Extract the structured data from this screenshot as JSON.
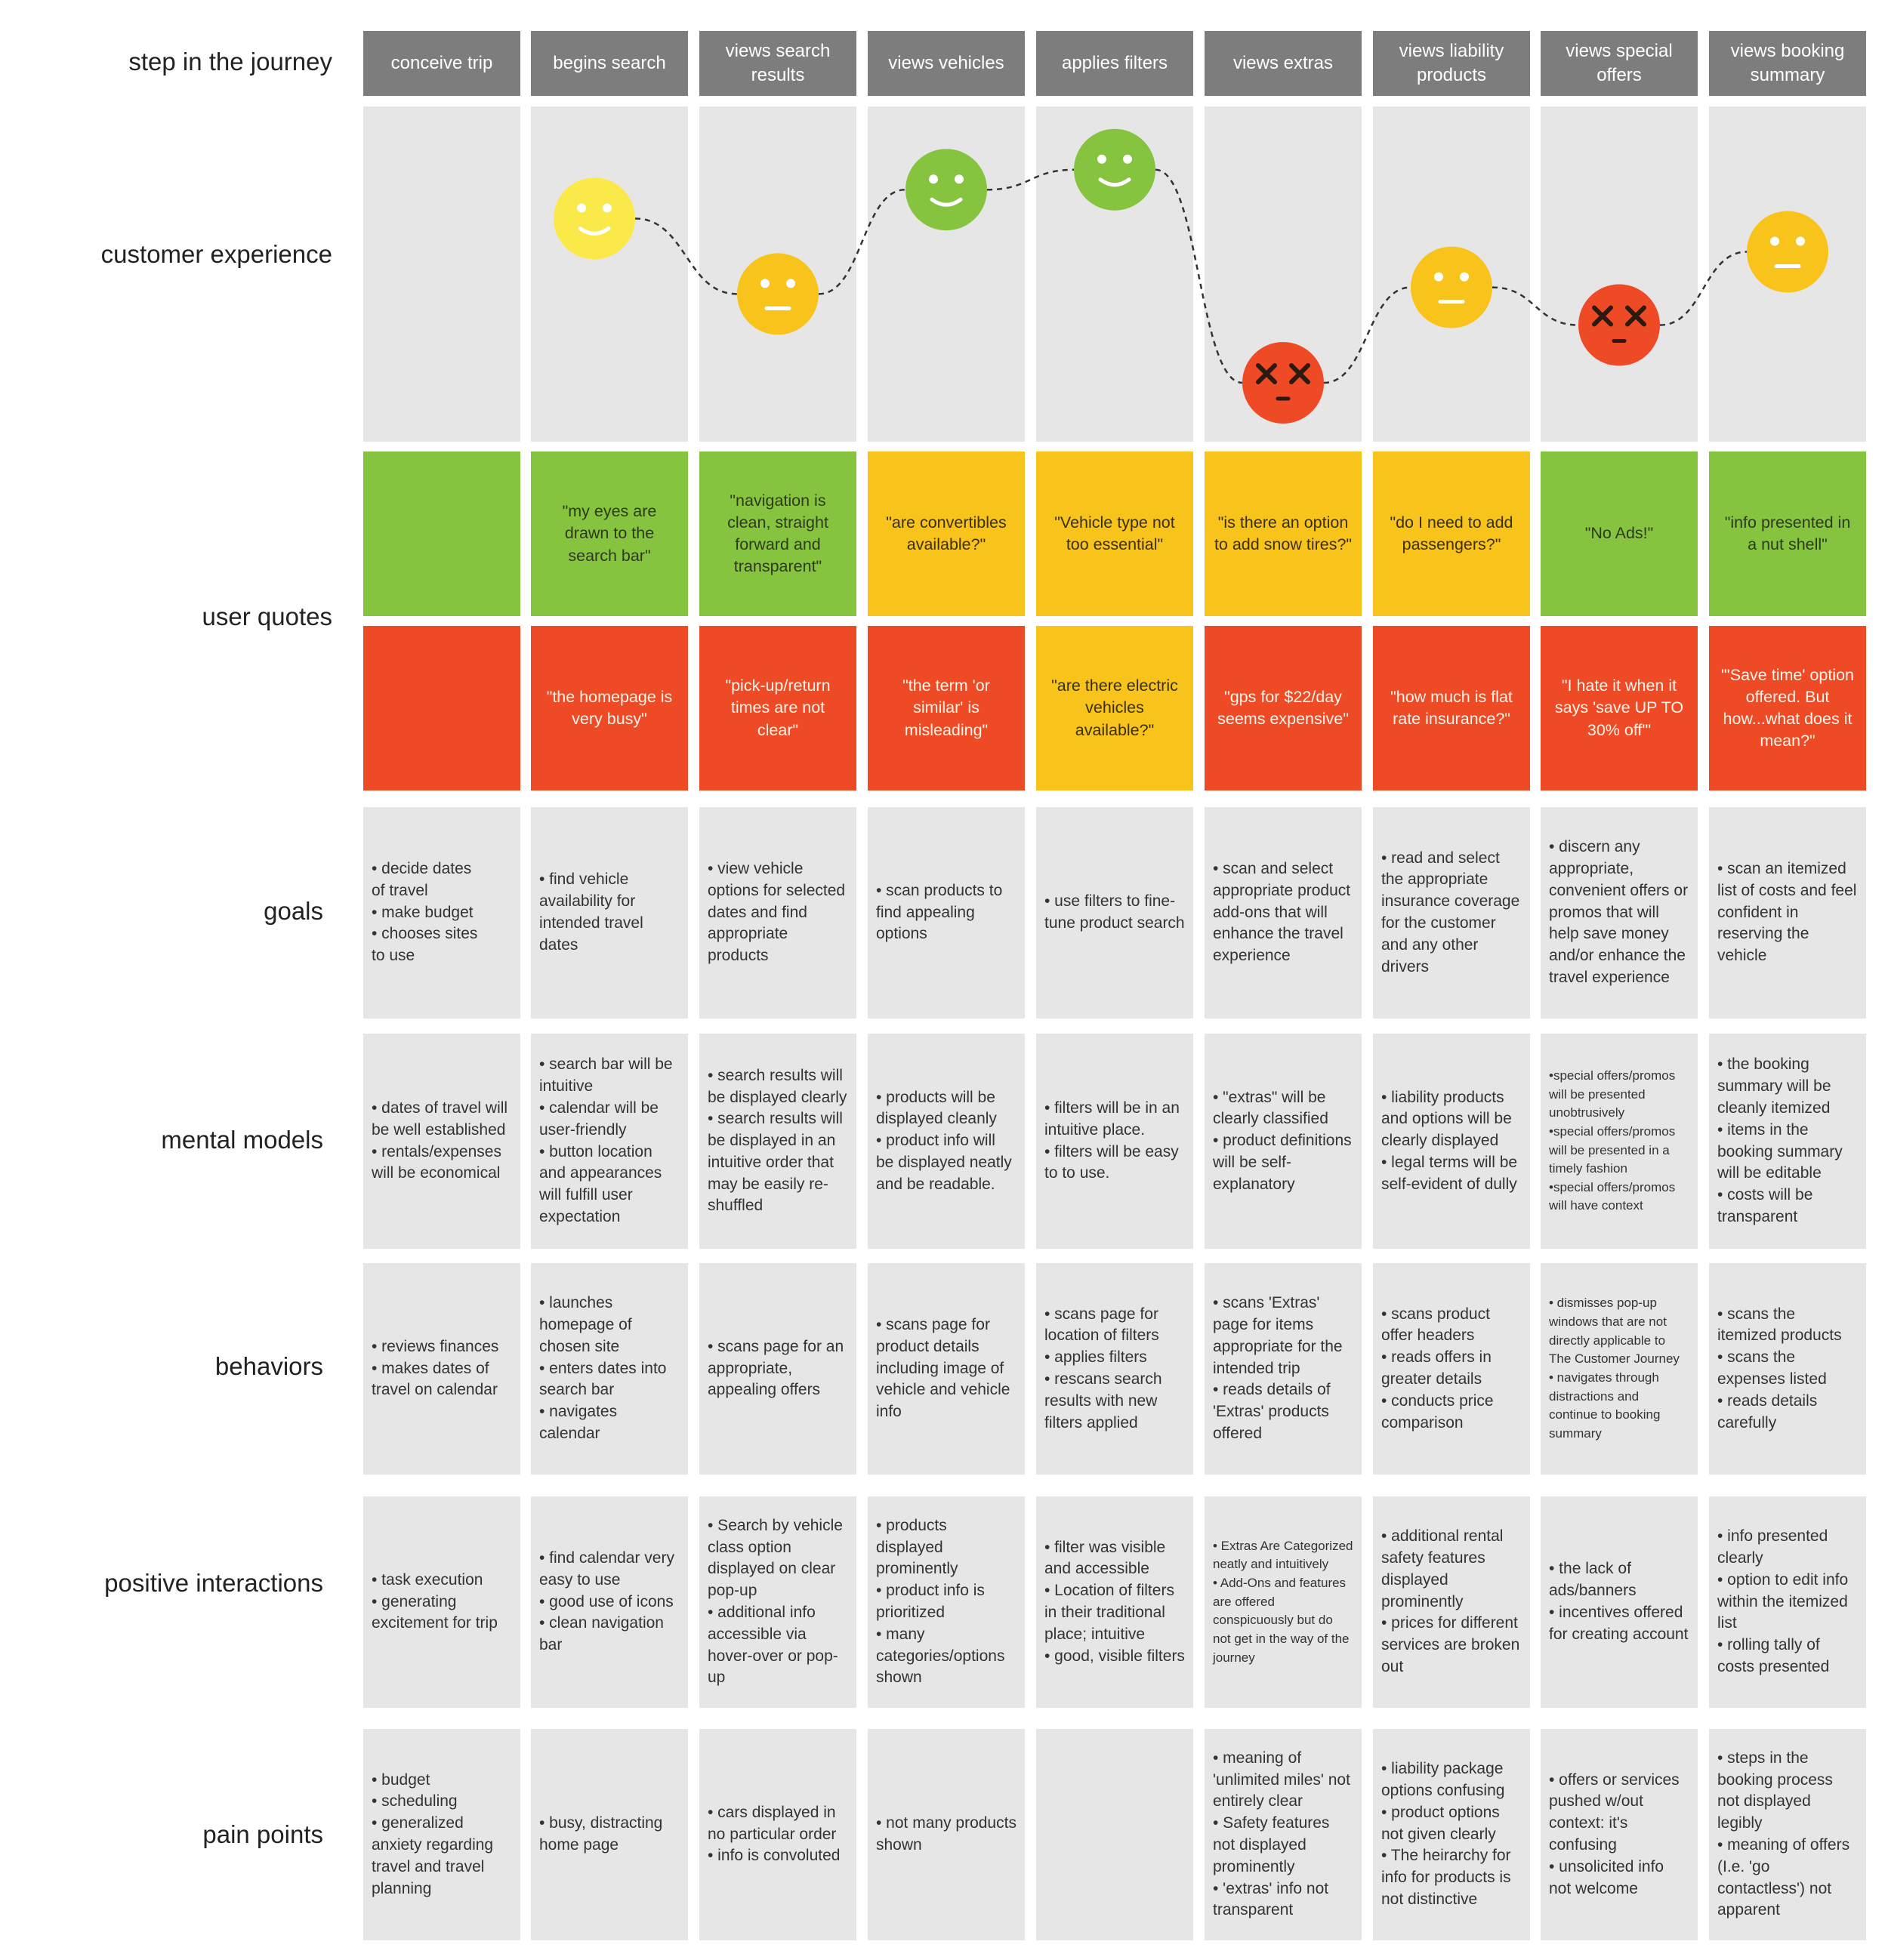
{
  "row_labels": {
    "step": "step in the journey",
    "experience": "customer experience",
    "quotes": "user quotes",
    "goals": "goals",
    "mental_models": "mental models",
    "behaviors": "behaviors",
    "positive": "positive interactions",
    "pain": "pain points"
  },
  "steps": [
    "conceive trip",
    "begins search",
    "views search results",
    "views vehicles",
    "applies filters",
    "views extras",
    "views liability products",
    "views special offers",
    "views booking summary"
  ],
  "experience": [
    {
      "mood": "none"
    },
    {
      "mood": "happy",
      "color": "#fbe94a",
      "level": 0.74
    },
    {
      "mood": "neutral",
      "color": "#f8c31a",
      "level": 0.4
    },
    {
      "mood": "happy",
      "color": "#86c440",
      "level": 0.87
    },
    {
      "mood": "happy",
      "color": "#86c440",
      "level": 0.96
    },
    {
      "mood": "dead",
      "color": "#ee4a26",
      "level": 0.0
    },
    {
      "mood": "neutral",
      "color": "#f8c31a",
      "level": 0.43
    },
    {
      "mood": "dead",
      "color": "#ee4a26",
      "level": 0.26
    },
    {
      "mood": "neutral",
      "color": "#f8c31a",
      "level": 0.59
    }
  ],
  "quotes_top": [
    {
      "text": "",
      "tone": "green"
    },
    {
      "text": "\"my eyes are drawn to the search bar\"",
      "tone": "green"
    },
    {
      "text": "\"navigation is clean, straight forward and transparent\"",
      "tone": "green"
    },
    {
      "text": "\"are convertibles available?\"",
      "tone": "yellow"
    },
    {
      "text": "\"Vehicle type not too essential\"",
      "tone": "yellow"
    },
    {
      "text": "\"is there an option to add snow tires?\"",
      "tone": "yellow"
    },
    {
      "text": "\"do I need to add passengers?\"",
      "tone": "yellow"
    },
    {
      "text": "\"No Ads!\"",
      "tone": "green"
    },
    {
      "text": "\"info presented in a nut shell\"",
      "tone": "green"
    }
  ],
  "quotes_bottom": [
    {
      "text": "",
      "tone": "red"
    },
    {
      "text": "\"the homepage is very busy\"",
      "tone": "red"
    },
    {
      "text": "\"pick-up/return times are not clear\"",
      "tone": "red"
    },
    {
      "text": "\"the term 'or similar' is misleading\"",
      "tone": "red"
    },
    {
      "text": "\"are there electric vehicles available?\"",
      "tone": "yellow"
    },
    {
      "text": "\"gps for $22/day seems expensive\"",
      "tone": "red"
    },
    {
      "text": "\"how much is flat rate insurance?\"",
      "tone": "red"
    },
    {
      "text": "\"I hate it when it says 'save UP TO 30% off'\"",
      "tone": "red"
    },
    {
      "text": "\"'Save time' option offered. But how...what does it mean?\"",
      "tone": "red"
    }
  ],
  "goals": [
    "• decide dates\n  of travel\n• make budget\n• chooses sites\n  to use",
    "• find vehicle availability for intended travel dates",
    "• view vehicle options for selected dates and find appropriate products",
    "• scan products to find appealing options",
    "• use filters to fine-tune product search",
    "• scan and select appropriate product add-ons that will enhance the travel experience",
    "• read and select the appropriate insurance coverage for the customer and any other drivers",
    "• discern any appropriate, convenient offers or promos that will help save money and/or enhance the travel experience",
    "• scan an itemized list of costs and feel confident in reserving the vehicle"
  ],
  "mental_models": [
    {
      "text": "• dates of travel will be well established\n• rentals/expenses will be economical",
      "small": false
    },
    {
      "text": "• search bar will be intuitive\n• calendar will be user-friendly\n• button location and appearances will fulfill user expectation",
      "small": false
    },
    {
      "text": "• search results will be displayed clearly\n• search results will be displayed in an intuitive order that may be easily re-shuffled",
      "small": false
    },
    {
      "text": "• products will be displayed cleanly\n• product info will be displayed neatly and be readable.",
      "small": false
    },
    {
      "text": "• filters will be in an intuitive place.\n• filters will be easy to to use.",
      "small": false
    },
    {
      "text": "• \"extras\" will be clearly classified\n• product definitions will be self-explanatory",
      "small": false
    },
    {
      "text": "• liability products and options will be clearly displayed\n• legal terms will be self-evident of dully",
      "small": false
    },
    {
      "text": "•special offers/promos will be presented unobtrusively\n•special offers/promos will be presented in a timely fashion\n•special offers/promos will have context",
      "small": true
    },
    {
      "text": "• the booking summary will be cleanly itemized\n• items in the booking summary will be editable\n• costs will be transparent",
      "small": false
    }
  ],
  "behaviors": [
    {
      "text": "• reviews finances\n• makes dates of\n  travel on calendar",
      "small": false
    },
    {
      "text": "• launches homepage of chosen site\n• enters dates into search bar\n• navigates calendar",
      "small": false
    },
    {
      "text": "• scans page for an appropriate, appealing offers",
      "small": false
    },
    {
      "text": "• scans page for product details including image of vehicle and vehicle info",
      "small": false
    },
    {
      "text": "• scans page for location of filters\n• applies filters\n• rescans search results with new filters applied",
      "small": false
    },
    {
      "text": "• scans 'Extras' page for items appropriate for the intended trip\n• reads details of 'Extras' products offered",
      "small": false
    },
    {
      "text": "• scans product offer headers\n• reads offers in greater details\n• conducts price comparison",
      "small": false
    },
    {
      "text": "• dismisses pop-up windows that are not directly applicable to The Customer Journey\n• navigates through distractions and continue to booking summary",
      "small": true
    },
    {
      "text": "• scans the itemized products\n• scans the expenses listed\n• reads details carefully",
      "small": false
    }
  ],
  "positive": [
    {
      "text": "• task execution\n• generating excitement for trip",
      "small": false
    },
    {
      "text": "• find calendar very easy to use\n• good use of icons\n• clean navigation bar",
      "small": false
    },
    {
      "text": "• Search by vehicle class option displayed on clear pop-up\n• additional info accessible via hover-over or pop-up",
      "small": false
    },
    {
      "text": "• products displayed prominently\n• product info is prioritized\n• many categories/options shown",
      "small": false
    },
    {
      "text": "• filter was visible and accessible\n• Location of filters in their traditional place; intuitive\n• good, visible filters",
      "small": false
    },
    {
      "text": "• Extras Are Categorized neatly and intuitively\n• Add-Ons and features are offered conspicuously but do not get in the way of the journey",
      "small": true
    },
    {
      "text": "• additional rental safety features displayed prominently\n• prices for different services are broken out",
      "small": false
    },
    {
      "text": "• the lack of ads/banners\n• incentives offered for creating account",
      "small": false
    },
    {
      "text": "• info presented clearly\n• option to edit info within the itemized list\n• rolling tally of costs presented",
      "small": false
    }
  ],
  "pain": [
    {
      "text": "• budget\n• scheduling\n• generalized anxiety regarding travel and travel planning",
      "small": false
    },
    {
      "text": "• busy, distracting home page",
      "small": false
    },
    {
      "text": "• cars displayed in no particular order\n• info is convoluted",
      "small": false
    },
    {
      "text": "• not many products shown",
      "small": false
    },
    {
      "text": "",
      "small": false
    },
    {
      "text": "• meaning of 'unlimited miles' not entirely clear\n• Safety features not displayed prominently\n• 'extras' info not transparent",
      "small": false
    },
    {
      "text": "• liability package options confusing\n• product options not given clearly\n• The heirarchy for info for products is not distinctive",
      "small": false
    },
    {
      "text": "• offers or services pushed w/out context: it's confusing\n• unsolicited info not welcome",
      "small": false
    },
    {
      "text": "• steps in the booking process not displayed legibly\n• meaning of offers (I.e. 'go contactless') not apparent",
      "small": false
    }
  ]
}
